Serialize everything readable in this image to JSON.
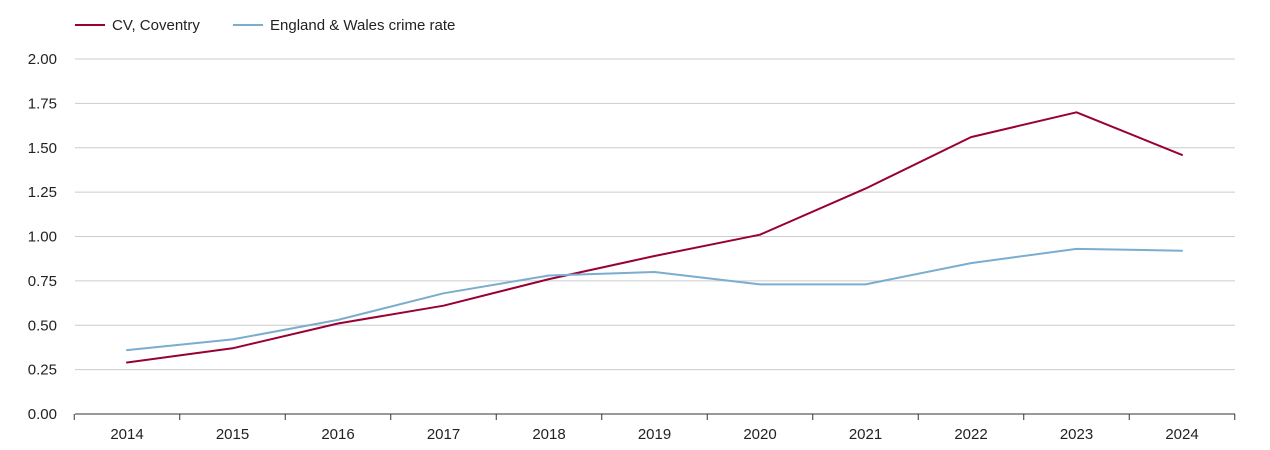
{
  "chart_data": {
    "type": "line",
    "title": "",
    "xlabel": "",
    "ylabel": "",
    "legend_position": "top-left",
    "grid": true,
    "categories": [
      "2014",
      "2015",
      "2016",
      "2017",
      "2018",
      "2019",
      "2020",
      "2021",
      "2022",
      "2023",
      "2024"
    ],
    "ylim": [
      0,
      2
    ],
    "yticks": [
      "0.00",
      "0.25",
      "0.50",
      "0.75",
      "1.00",
      "1.25",
      "1.50",
      "1.75",
      "2.00"
    ],
    "series": [
      {
        "name": "CV, Coventry",
        "color": "#990033",
        "values": [
          0.29,
          0.37,
          0.51,
          0.61,
          0.76,
          0.89,
          1.01,
          1.27,
          1.56,
          1.7,
          1.46
        ]
      },
      {
        "name": "England & Wales crime rate",
        "color": "#7aadcf",
        "values": [
          0.36,
          0.42,
          0.53,
          0.68,
          0.78,
          0.8,
          0.73,
          0.73,
          0.85,
          0.93,
          0.92
        ]
      }
    ]
  }
}
